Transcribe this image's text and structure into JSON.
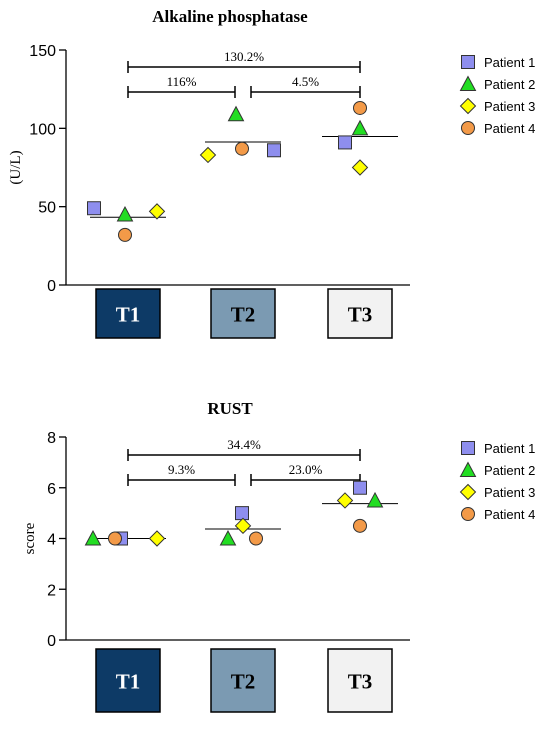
{
  "chart_data": [
    {
      "type": "scatter",
      "title": "Alkaline phosphatase",
      "xlabel": "",
      "ylabel": "(U/L)",
      "ylim": [
        0,
        150
      ],
      "yticks": [
        "0",
        "50",
        "100",
        "150"
      ],
      "categories": [
        "T1",
        "T2",
        "T3"
      ],
      "series": [
        {
          "name": "Patient 1",
          "marker": "square",
          "color": "#8E8EEE",
          "values": [
            49,
            86,
            91
          ]
        },
        {
          "name": "Patient 2",
          "marker": "triangle",
          "color": "#22DD22",
          "values": [
            45,
            109,
            100
          ]
        },
        {
          "name": "Patient 3",
          "marker": "diamond",
          "color": "#FFFF00",
          "values": [
            47,
            83,
            75
          ]
        },
        {
          "name": "Patient 4",
          "marker": "circle",
          "color": "#F39A48",
          "values": [
            32,
            87,
            113
          ]
        }
      ],
      "means": [
        43.25,
        91.25,
        94.75
      ],
      "brackets": [
        {
          "from": "T1",
          "to": "T3",
          "label": "130.2%",
          "level": 1
        },
        {
          "from": "T1",
          "to": "T2",
          "label": "116%",
          "level": 2
        },
        {
          "from": "T2",
          "to": "T3",
          "label": "4.5%",
          "level": 2
        }
      ],
      "legend_position": "top-right"
    },
    {
      "type": "scatter",
      "title": "RUST",
      "xlabel": "",
      "ylabel": "score",
      "ylim": [
        0,
        8
      ],
      "yticks": [
        "0",
        "2",
        "4",
        "6",
        "8"
      ],
      "categories": [
        "T1",
        "T2",
        "T3"
      ],
      "series": [
        {
          "name": "Patient 1",
          "marker": "square",
          "color": "#8E8EEE",
          "values": [
            4,
            5,
            6
          ]
        },
        {
          "name": "Patient 2",
          "marker": "triangle",
          "color": "#22DD22",
          "values": [
            4,
            4,
            5.5
          ]
        },
        {
          "name": "Patient 3",
          "marker": "diamond",
          "color": "#FFFF00",
          "values": [
            4,
            4.5,
            5.5
          ]
        },
        {
          "name": "Patient 4",
          "marker": "circle",
          "color": "#F39A48",
          "values": [
            4,
            4,
            4.5
          ]
        }
      ],
      "means": [
        4,
        4.375,
        5.375
      ],
      "brackets": [
        {
          "from": "T1",
          "to": "T3",
          "label": "34.4%",
          "level": 1
        },
        {
          "from": "T1",
          "to": "T2",
          "label": "9.3%",
          "level": 2
        },
        {
          "from": "T2",
          "to": "T3",
          "label": "23.0%",
          "level": 2
        }
      ],
      "legend_position": "top-right"
    }
  ],
  "category_box_colors": [
    "#0D3A66",
    "#7B9AB2",
    "#F2F2F2"
  ],
  "category_text_colors": [
    "#FFFFFF",
    "#000000",
    "#000000"
  ]
}
